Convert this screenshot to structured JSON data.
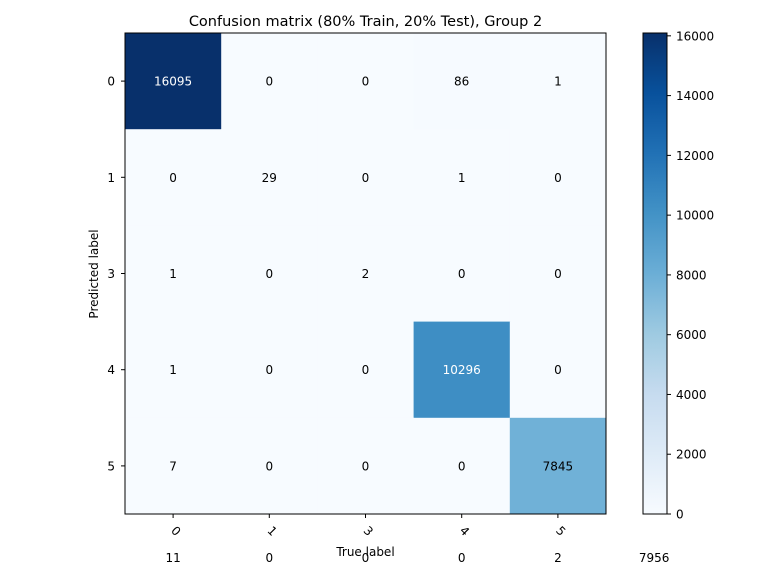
{
  "chart_data": {
    "type": "heatmap",
    "title": "Confusion matrix (80% Train, 20% Test), Group 2",
    "xlabel": "True label",
    "ylabel": "Predicted label",
    "x_categories": [
      "0",
      "1",
      "3",
      "4",
      "5"
    ],
    "y_categories": [
      "0",
      "1",
      "3",
      "4",
      "5"
    ],
    "values": [
      [
        16095,
        0,
        0,
        86,
        1
      ],
      [
        0,
        29,
        0,
        1,
        0
      ],
      [
        1,
        0,
        2,
        0,
        0
      ],
      [
        1,
        0,
        0,
        10296,
        0
      ],
      [
        7,
        0,
        0,
        0,
        7845
      ]
    ],
    "overflow_row": [
      "11",
      "0",
      "0",
      "0",
      "2",
      "7956"
    ],
    "color_range": [
      0,
      16095
    ],
    "colormap": "Blues",
    "colorbar_ticks": [
      0,
      2000,
      4000,
      6000,
      8000,
      10000,
      12000,
      14000,
      16000
    ]
  }
}
